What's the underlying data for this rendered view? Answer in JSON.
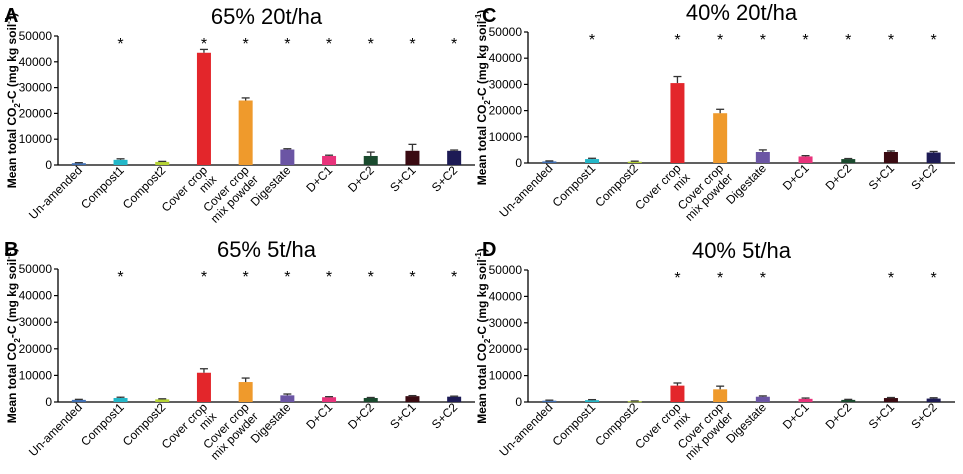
{
  "colors": {
    "Un-amended": "#3f6fb3",
    "Compost1": "#23b7c8",
    "Compost2": "#b5d334",
    "Cover crop mix": "#e3262b",
    "Cover crop mix powder": "#ef9a2c",
    "Digestate": "#6b55a4",
    "D+C1": "#e8337b",
    "D+C2": "#1a4a2e",
    "S+C1": "#3a0b12",
    "S+C2": "#1d1b55",
    "axis": "#000000",
    "error_bar": "#333333"
  },
  "chart_data": [
    {
      "panel": "A",
      "type": "bar",
      "title": "65% 20t/ha",
      "ylabel": "Mean total CO2-C (mg kg soil-1)",
      "ylabel_parts": {
        "main": "Mean total CO",
        "sub": "2",
        "mid": "-C (mg kg soil",
        "sup": "-1",
        "end": ")"
      },
      "xlabel": "",
      "ylim": [
        0,
        50000
      ],
      "yticks": [
        "0",
        "10000",
        "20000",
        "30000",
        "40000",
        "50000"
      ],
      "categories": [
        "Un-amended",
        "Compost1",
        "Compost2",
        "Cover crop mix",
        "Cover crop mix powder",
        "Digestate",
        "D+C1",
        "D+C2",
        "S+C1",
        "S+C2"
      ],
      "category_labels": [
        [
          "Un-amended"
        ],
        [
          "Compost1"
        ],
        [
          "Compost2"
        ],
        [
          "Cover crop",
          "mix"
        ],
        [
          "Cover crop",
          "mix powder"
        ],
        [
          "Digestate"
        ],
        [
          "D+C1"
        ],
        [
          "D+C2"
        ],
        [
          "S+C1"
        ],
        [
          "S+C2"
        ]
      ],
      "values": [
        700,
        2000,
        1200,
        43500,
        25000,
        6000,
        3500,
        3500,
        5500,
        5500
      ],
      "errors": [
        200,
        400,
        200,
        1300,
        1000,
        300,
        300,
        1500,
        2500,
        300
      ],
      "significance": [
        "",
        "*",
        "",
        "*",
        "*",
        "*",
        "*",
        "*",
        "*",
        "*"
      ]
    },
    {
      "panel": "C",
      "type": "bar",
      "title": "40% 20t/ha",
      "ylabel": "Mean total CO2-C (mg kg soil-1)",
      "ylabel_parts": {
        "main": "Mean total CO",
        "sub": "2",
        "mid": "-C (mg kg soil",
        "sup": "-1",
        "end": ")"
      },
      "xlabel": "",
      "ylim": [
        0,
        50000
      ],
      "yticks": [
        "0",
        "10000",
        "20000",
        "30000",
        "40000",
        "50000"
      ],
      "categories": [
        "Un-amended",
        "Compost1",
        "Compost2",
        "Cover crop mix",
        "Cover crop mix powder",
        "Digestate",
        "D+C1",
        "D+C2",
        "S+C1",
        "S+C2"
      ],
      "category_labels": [
        [
          "Un-amended"
        ],
        [
          "Compost1"
        ],
        [
          "Compost2"
        ],
        [
          "Cover crop",
          "mix"
        ],
        [
          "Cover crop",
          "mix powder"
        ],
        [
          "Digestate"
        ],
        [
          "D+C1"
        ],
        [
          "D+C2"
        ],
        [
          "S+C1"
        ],
        [
          "S+C2"
        ]
      ],
      "values": [
        600,
        1500,
        500,
        30500,
        19000,
        4200,
        2500,
        1500,
        4200,
        4000
      ],
      "errors": [
        200,
        300,
        200,
        2500,
        1500,
        800,
        300,
        200,
        400,
        400
      ],
      "significance": [
        "",
        "*",
        "",
        "*",
        "*",
        "*",
        "*",
        "*",
        "*",
        "*"
      ]
    },
    {
      "panel": "B",
      "type": "bar",
      "title": "65% 5t/ha",
      "ylabel": "Mean total CO2-C (mg kg soil-1)",
      "ylabel_parts": {
        "main": "Mean total CO",
        "sub": "2",
        "mid": "-C (mg kg soil",
        "sup": "-1",
        "end": ")"
      },
      "xlabel": "",
      "ylim": [
        0,
        50000
      ],
      "yticks": [
        "0",
        "10000",
        "20000",
        "30000",
        "40000",
        "50000"
      ],
      "categories": [
        "Un-amended",
        "Compost1",
        "Compost2",
        "Cover crop mix",
        "Cover crop mix powder",
        "Digestate",
        "D+C1",
        "D+C2",
        "S+C1",
        "S+C2"
      ],
      "category_labels": [
        [
          "Un-amended"
        ],
        [
          "Compost1"
        ],
        [
          "Compost2"
        ],
        [
          "Cover crop",
          "mix"
        ],
        [
          "Cover crop",
          "mix powder"
        ],
        [
          "Digestate"
        ],
        [
          "D+C1"
        ],
        [
          "D+C2"
        ],
        [
          "S+C1"
        ],
        [
          "S+C2"
        ]
      ],
      "values": [
        800,
        1500,
        1000,
        11000,
        7500,
        2500,
        1800,
        1500,
        2200,
        2000
      ],
      "errors": [
        200,
        300,
        200,
        1500,
        1500,
        500,
        200,
        200,
        200,
        200
      ],
      "significance": [
        "",
        "*",
        "",
        "*",
        "*",
        "*",
        "*",
        "*",
        "*",
        "*"
      ]
    },
    {
      "panel": "D",
      "type": "bar",
      "title": "40% 5t/ha",
      "ylabel": "Mean total CO2-C (mg kg soil-1)",
      "ylabel_parts": {
        "main": "Mean total CO",
        "sub": "2",
        "mid": "-C (mg kg soil",
        "sup": "-1",
        "end": ")"
      },
      "xlabel": "",
      "ylim": [
        0,
        50000
      ],
      "yticks": [
        "0",
        "10000",
        "20000",
        "30000",
        "40000",
        "50000"
      ],
      "categories": [
        "Un-amended",
        "Compost1",
        "Compost2",
        "Cover crop mix",
        "Cover crop mix powder",
        "Digestate",
        "D+C1",
        "D+C2",
        "S+C1",
        "S+C2"
      ],
      "category_labels": [
        [
          "Un-amended"
        ],
        [
          "Compost1"
        ],
        [
          "Compost2"
        ],
        [
          "Cover crop",
          "mix"
        ],
        [
          "Cover crop",
          "mix powder"
        ],
        [
          "Digestate"
        ],
        [
          "D+C1"
        ],
        [
          "D+C2"
        ],
        [
          "S+C1"
        ],
        [
          "S+C2"
        ]
      ],
      "values": [
        500,
        700,
        300,
        6200,
        4800,
        2000,
        1200,
        800,
        1500,
        1300
      ],
      "errors": [
        200,
        200,
        100,
        1000,
        1200,
        300,
        300,
        200,
        200,
        300
      ],
      "significance": [
        "",
        "",
        "",
        "*",
        "*",
        "*",
        "",
        "",
        "*",
        "*"
      ]
    }
  ]
}
